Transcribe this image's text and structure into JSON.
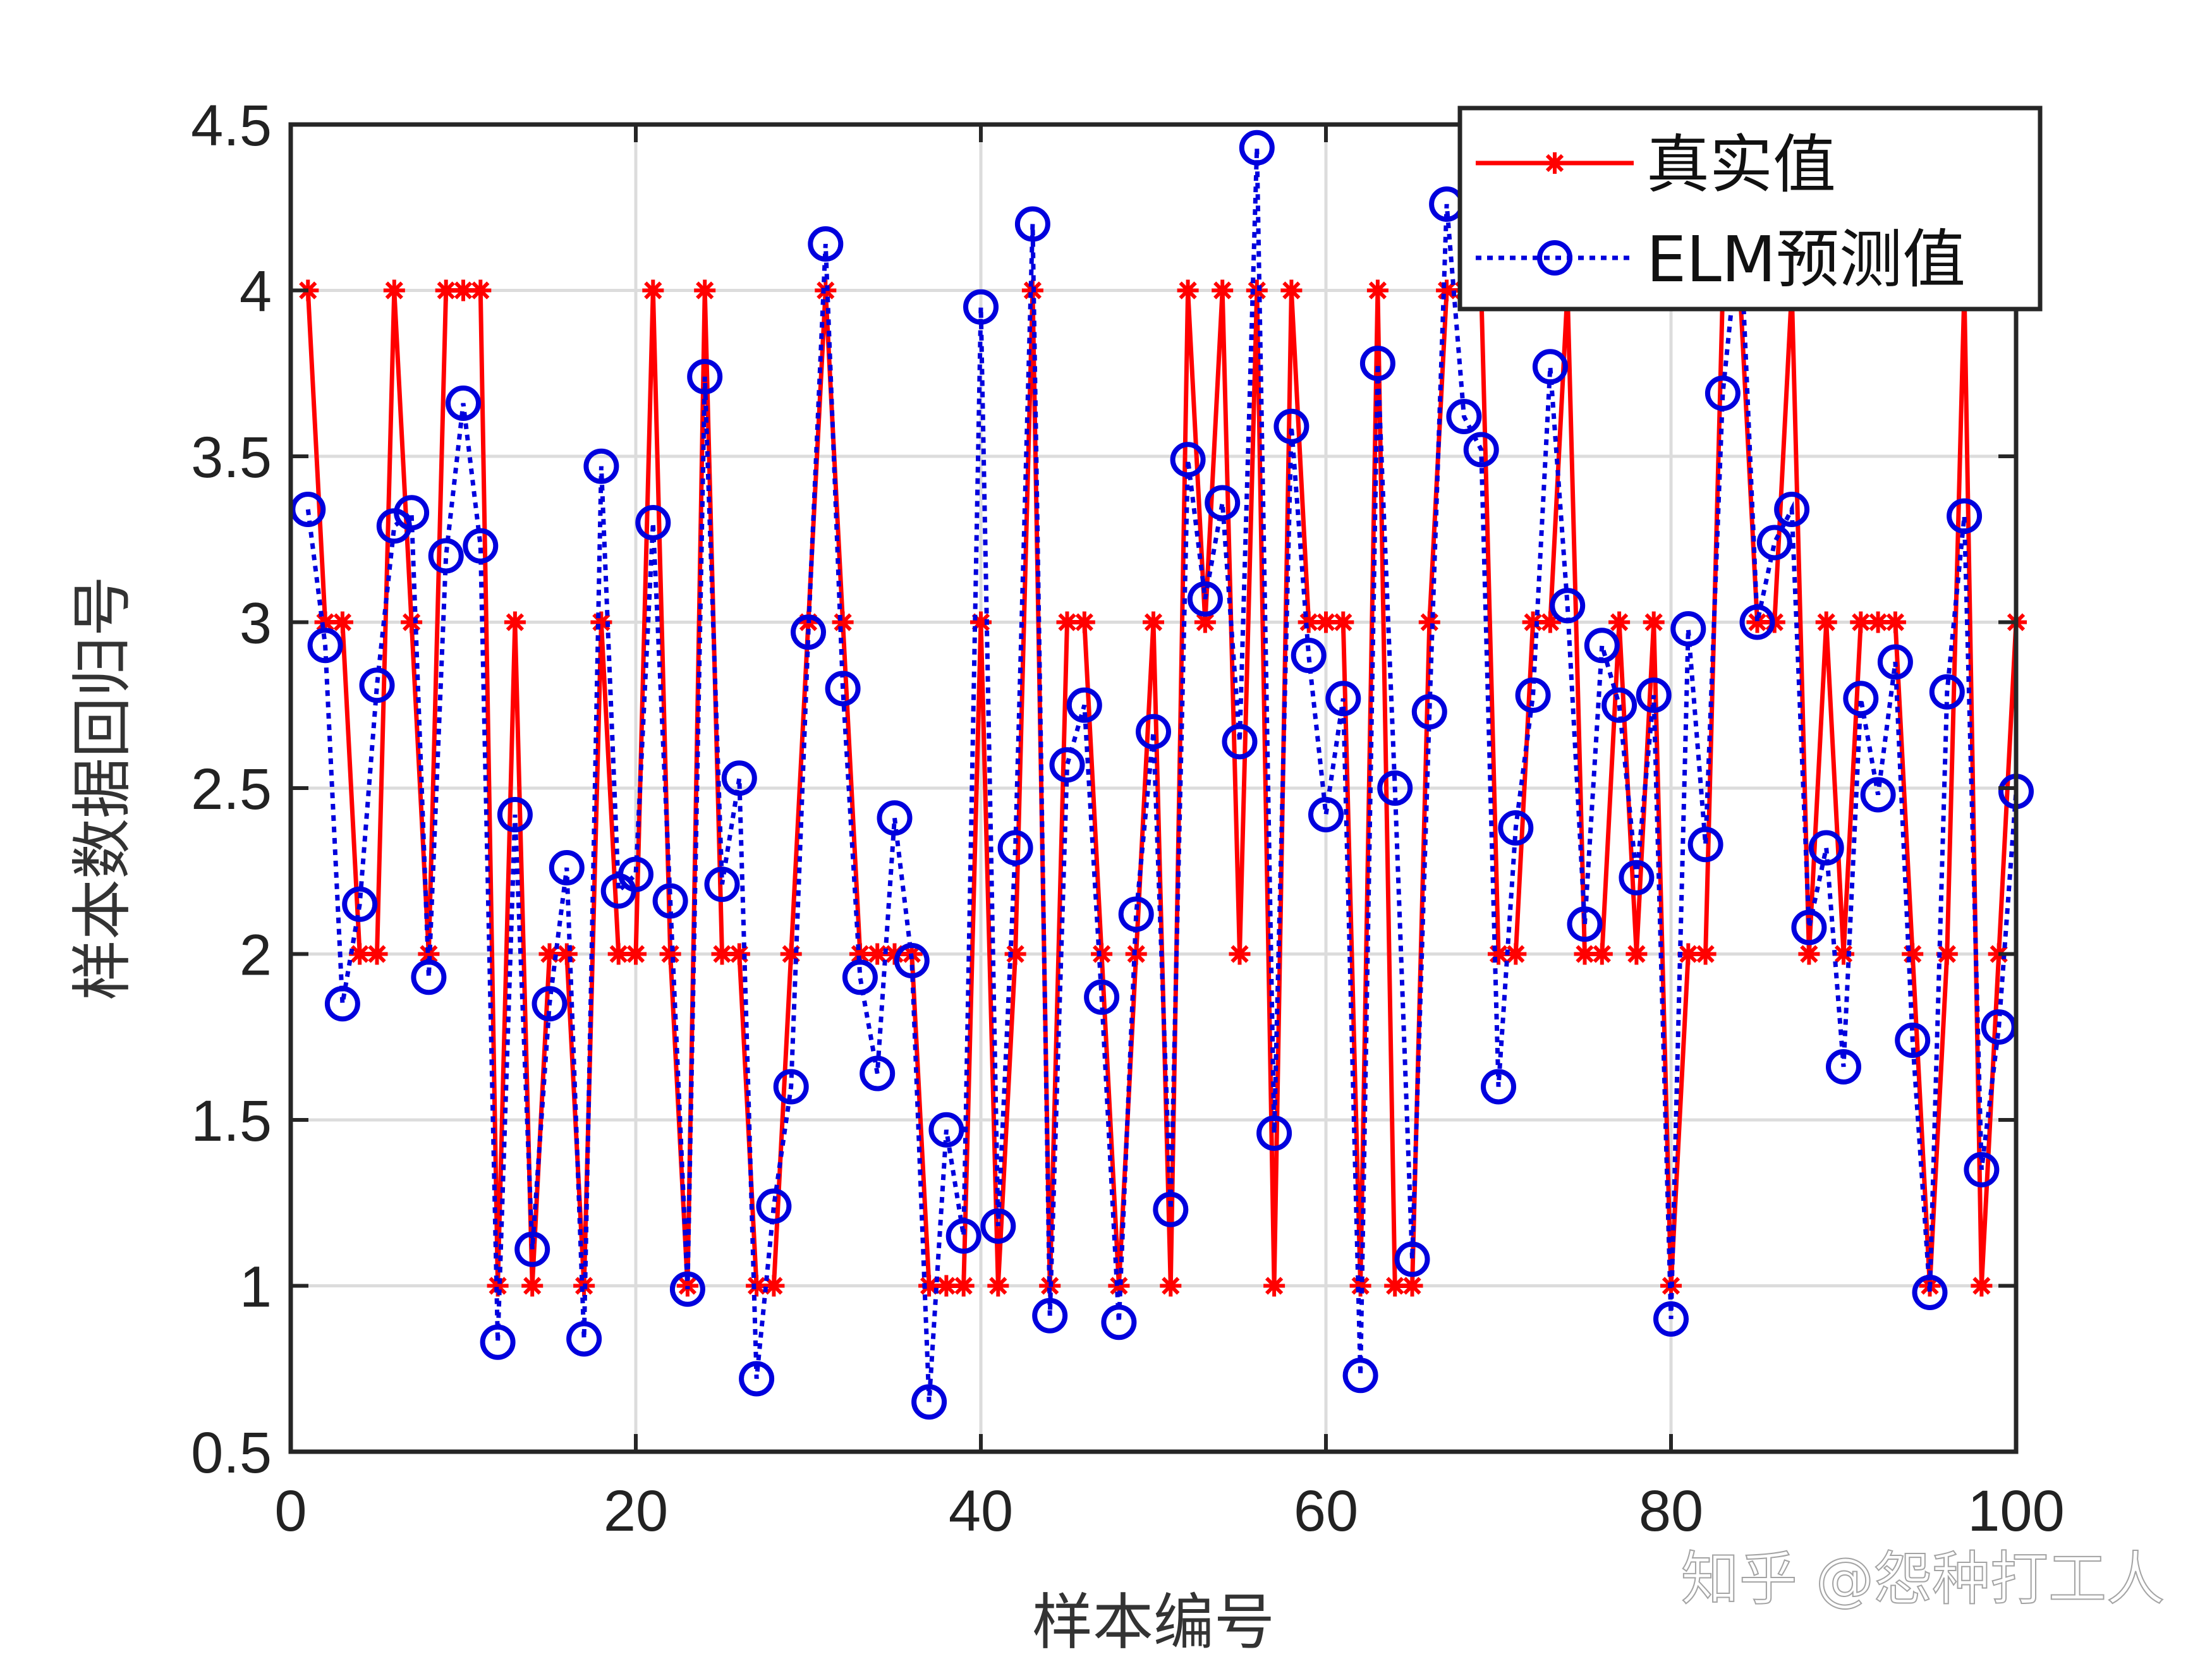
{
  "chart_data": {
    "type": "line",
    "title": "",
    "xlabel": "样本编号",
    "ylabel": "样本数据回归号",
    "xlim": [
      0,
      100
    ],
    "ylim": [
      0.5,
      4.5
    ],
    "xticks": [
      0,
      20,
      40,
      60,
      80,
      100
    ],
    "yticks": [
      0.5,
      1,
      1.5,
      2,
      2.5,
      3,
      3.5,
      4,
      4.5
    ],
    "grid": true,
    "legend_position": "top-right",
    "x": [
      1,
      2,
      3,
      4,
      5,
      6,
      7,
      8,
      9,
      10,
      11,
      12,
      13,
      14,
      15,
      16,
      17,
      18,
      19,
      20,
      21,
      22,
      23,
      24,
      25,
      26,
      27,
      28,
      29,
      30,
      31,
      32,
      33,
      34,
      35,
      36,
      37,
      38,
      39,
      40,
      41,
      42,
      43,
      44,
      45,
      46,
      47,
      48,
      49,
      50,
      51,
      52,
      53,
      54,
      55,
      56,
      57,
      58,
      59,
      60,
      61,
      62,
      63,
      64,
      65,
      66,
      67,
      68,
      69,
      70,
      71,
      72,
      73,
      74,
      75,
      76,
      77,
      78,
      79,
      80,
      81,
      82,
      83,
      84,
      85,
      86,
      87,
      88,
      89,
      90,
      91,
      92,
      93,
      94,
      95,
      96,
      97,
      98,
      99,
      100
    ],
    "series": [
      {
        "name": "真实值",
        "color": "#ff0000",
        "marker": "asterisk",
        "linestyle": "solid",
        "values": [
          4,
          3,
          3,
          2,
          2,
          4,
          3,
          2,
          4,
          4,
          4,
          1,
          3,
          1,
          2,
          2,
          1,
          3,
          2,
          2,
          4,
          2,
          1,
          4,
          2,
          2,
          1,
          1,
          2,
          3,
          4,
          3,
          2,
          2,
          2,
          2,
          1,
          1,
          1,
          3,
          1,
          2,
          4,
          1,
          3,
          3,
          2,
          1,
          2,
          3,
          1,
          4,
          3,
          4,
          2,
          4,
          1,
          4,
          3,
          3,
          3,
          1,
          4,
          1,
          1,
          3,
          4,
          4,
          4,
          2,
          2,
          3,
          3,
          4,
          2,
          2,
          3,
          2,
          3,
          1,
          2,
          2,
          4,
          4,
          3,
          3,
          4,
          2,
          3,
          2,
          3,
          3,
          3,
          2,
          1,
          2,
          4,
          1,
          2,
          3
        ]
      },
      {
        "name": "ELM预测值",
        "color": "#0000dd",
        "marker": "circle",
        "linestyle": "dotted",
        "values": [
          3.34,
          2.93,
          1.85,
          2.15,
          2.81,
          3.29,
          3.33,
          1.93,
          3.2,
          3.66,
          3.23,
          0.83,
          2.42,
          1.11,
          1.85,
          2.26,
          0.84,
          3.47,
          2.19,
          2.24,
          3.3,
          2.16,
          0.99,
          3.74,
          2.21,
          2.53,
          0.72,
          1.24,
          1.6,
          2.97,
          4.14,
          2.8,
          1.93,
          1.64,
          2.41,
          1.98,
          0.65,
          1.47,
          1.15,
          3.95,
          1.18,
          2.32,
          4.2,
          0.91,
          2.57,
          2.75,
          1.87,
          0.89,
          2.12,
          2.67,
          1.23,
          3.49,
          3.07,
          3.36,
          2.64,
          4.43,
          1.46,
          3.59,
          2.9,
          2.42,
          2.77,
          0.73,
          3.78,
          2.5,
          1.08,
          2.73,
          4.26,
          3.62,
          3.52,
          1.6,
          2.38,
          2.78,
          3.77,
          3.05,
          2.09,
          2.93,
          2.75,
          2.23,
          2.78,
          0.9,
          2.98,
          2.33,
          3.69,
          4.2,
          3.0,
          3.24,
          3.34,
          2.08,
          2.32,
          1.66,
          2.77,
          2.48,
          2.88,
          1.74,
          0.98,
          2.79,
          3.32,
          1.35,
          1.78,
          2.49
        ]
      }
    ]
  },
  "watermark": "知乎 @怨种打工人"
}
